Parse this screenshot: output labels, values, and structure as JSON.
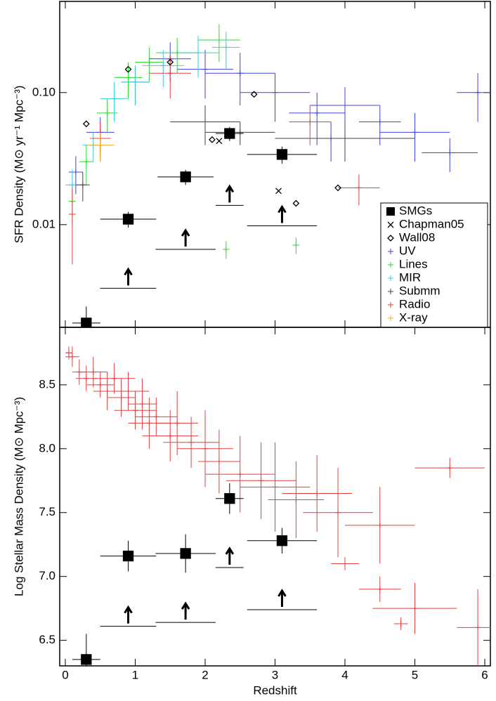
{
  "chart_data": [
    {
      "type": "scatter",
      "ylabel": "SFR Density (M⊙ yr⁻¹ Mpc⁻³)",
      "xlim": [
        -0.08,
        6.08
      ],
      "xticks": [
        0,
        1,
        2,
        3,
        4,
        5,
        6
      ],
      "ylim": [
        0.00167,
        0.49
      ],
      "ylog": true,
      "yticks": [
        0.01,
        {
          "value": 0.1,
          "label": "0.10"
        }
      ],
      "legend": "lower right",
      "series": [
        {
          "name": "SMGs",
          "color": "#000000",
          "marker": "square",
          "x": [
            0.3,
            0.9,
            1.72,
            2.35,
            3.1
          ],
          "values": [
            0.0018,
            0.011,
            0.023,
            0.049,
            0.034
          ],
          "xerr": [
            0.2,
            0.4,
            0.4,
            0.2,
            0.5
          ],
          "yerr": [
            0.0006,
            0.0015,
            0.003,
            0.006,
            0.005
          ]
        },
        {
          "color": "#000000",
          "marker": "arrow",
          "x": [
            0.9,
            1.72,
            2.35,
            3.1
          ],
          "values": [
            0.0033,
            0.0065,
            0.014,
            0.0098
          ],
          "xerr": [
            0.4,
            0.43,
            0.2,
            0.5
          ]
        },
        {
          "name": "Chapman05",
          "color": "#000000",
          "marker": "x",
          "x": [
            2.2,
            3.05
          ],
          "values": [
            0.043,
            0.018
          ]
        },
        {
          "name": "Wall08",
          "color": "#000000",
          "marker": "diamond",
          "x": [
            0.3,
            0.9,
            1.5,
            2.1,
            2.7,
            3.3,
            3.9
          ],
          "values": [
            0.058,
            0.15,
            0.17,
            0.044,
            0.097,
            0.0145,
            0.019
          ]
        },
        {
          "name": "UV",
          "color": "#4040e0",
          "marker": "cross",
          "x": [
            0.15,
            0.5,
            1.0,
            1.5,
            2.0,
            2.5,
            3.0,
            3.6,
            4.0,
            4.5,
            5.0,
            5.5,
            5.9,
            3.8
          ],
          "values": [
            0.025,
            0.05,
            0.12,
            0.18,
            0.15,
            0.14,
            0.1,
            0.07,
            0.08,
            0.06,
            0.05,
            0.035,
            0.1,
            0.045
          ],
          "xerr": [
            0.1,
            0.2,
            0.2,
            0.3,
            0.4,
            0.5,
            0.5,
            0.4,
            0.5,
            0.3,
            0.5,
            0.4,
            0.3,
            0.6
          ],
          "yerr": [
            0.008,
            0.015,
            0.04,
            0.06,
            0.06,
            0.06,
            0.04,
            0.03,
            0.03,
            0.02,
            0.02,
            0.01,
            0.04,
            0.015
          ]
        },
        {
          "name": "Lines",
          "color": "#30d830",
          "marker": "cross",
          "x": [
            0.1,
            0.3,
            0.6,
            0.9,
            1.2,
            1.6,
            2.2,
            2.3,
            3.3
          ],
          "values": [
            0.015,
            0.03,
            0.07,
            0.13,
            0.17,
            0.2,
            0.25,
            0.0065,
            0.007
          ],
          "xerr": [
            0.05,
            0.1,
            0.15,
            0.2,
            0.2,
            0.3,
            0.3,
            0.05,
            0.05
          ],
          "yerr": [
            0.005,
            0.01,
            0.02,
            0.04,
            0.05,
            0.06,
            0.08,
            0.001,
            0.001
          ]
        },
        {
          "name": "MIR",
          "color": "#30d0e0",
          "marker": "cross",
          "x": [
            0.1,
            0.4,
            0.7,
            1.0,
            1.4,
            1.9,
            2.3
          ],
          "values": [
            0.02,
            0.04,
            0.09,
            0.12,
            0.16,
            0.2,
            0.22
          ],
          "xerr": [
            0.1,
            0.15,
            0.2,
            0.2,
            0.3,
            0.3,
            0.2
          ],
          "yerr": [
            0.006,
            0.01,
            0.03,
            0.04,
            0.05,
            0.07,
            0.07
          ]
        },
        {
          "name": "Submm",
          "color": "#404040",
          "marker": "cross",
          "x": [
            0.25,
            2.0,
            2.5,
            4.0
          ],
          "values": [
            0.02,
            0.06,
            0.05,
            0.045
          ],
          "xerr": [
            0.1,
            0.5,
            0.5,
            1.0
          ],
          "yerr": [
            0.005,
            0.02,
            0.01,
            0.015
          ]
        },
        {
          "name": "Radio",
          "color": "#e04040",
          "marker": "cross",
          "x": [
            0.1,
            0.5,
            1.5,
            3.5,
            4.2
          ],
          "values": [
            0.012,
            0.045,
            0.14,
            0.06,
            0.019
          ],
          "xerr": [
            0.05,
            0.15,
            0.3,
            0.3,
            0.3
          ],
          "yerr": [
            0.007,
            0.015,
            0.05,
            0.02,
            0.005
          ]
        },
        {
          "name": "X-ray",
          "color": "#f0b030",
          "marker": "cross",
          "x": [
            0.5
          ],
          "values": [
            0.04
          ],
          "xerr": [
            0.2
          ],
          "yerr": [
            0.01
          ]
        }
      ]
    },
    {
      "type": "scatter",
      "xlabel": "Redshift",
      "ylabel": "Log Stellar Mass Density (M⊙ Mpc⁻³)",
      "xlim": [
        -0.08,
        6.08
      ],
      "xticks": [
        0,
        1,
        2,
        3,
        4,
        5,
        6
      ],
      "ylim": [
        6.3,
        8.95
      ],
      "yticks": [
        6.5,
        {
          "value": 7,
          "label": "7.0"
        },
        7.5,
        {
          "value": 8,
          "label": "8.0"
        },
        8.5
      ],
      "series": [
        {
          "color": "#e04040",
          "marker": "cross",
          "x": [
            0.05,
            0.1,
            0.2,
            0.3,
            0.4,
            0.5,
            0.6,
            0.7,
            0.8,
            0.9,
            1.0,
            1.1,
            1.2,
            1.3,
            1.5,
            1.6,
            1.8,
            2.0,
            2.2,
            2.5,
            2.8,
            3.0,
            3.3,
            3.6,
            3.9,
            4.5,
            4.0,
            4.5,
            4.8,
            5.5,
            5.0,
            5.9
          ],
          "values": [
            8.75,
            8.72,
            8.6,
            8.55,
            8.6,
            8.5,
            8.45,
            8.55,
            8.4,
            8.45,
            8.3,
            8.35,
            8.2,
            8.25,
            8.1,
            8.2,
            8.05,
            8.0,
            7.9,
            7.8,
            7.75,
            7.7,
            7.6,
            7.65,
            7.5,
            7.4,
            7.1,
            6.9,
            6.63,
            7.85,
            6.75,
            6.6
          ],
          "xerr": [
            0.05,
            0.1,
            0.1,
            0.15,
            0.2,
            0.2,
            0.2,
            0.3,
            0.2,
            0.3,
            0.3,
            0.2,
            0.3,
            0.3,
            0.4,
            0.3,
            0.4,
            0.4,
            0.3,
            0.5,
            0.5,
            0.5,
            0.4,
            0.5,
            0.5,
            0.5,
            0.2,
            0.3,
            0.1,
            0.5,
            0.6,
            0.3
          ],
          "yerr": [
            0.05,
            0.08,
            0.1,
            0.1,
            0.12,
            0.1,
            0.15,
            0.12,
            0.15,
            0.15,
            0.15,
            0.2,
            0.2,
            0.15,
            0.2,
            0.25,
            0.2,
            0.3,
            0.25,
            0.3,
            0.3,
            0.35,
            0.3,
            0.3,
            0.35,
            0.3,
            0.05,
            0.1,
            0.05,
            0.08,
            0.2,
            0.3
          ]
        },
        {
          "color": "#000000",
          "marker": "square",
          "x": [
            0.3,
            0.9,
            1.72,
            2.35,
            3.1
          ],
          "values": [
            6.35,
            7.16,
            7.18,
            7.61,
            7.28
          ],
          "xerr": [
            0.2,
            0.4,
            0.43,
            0.2,
            0.5
          ],
          "yerr": [
            0.2,
            0.12,
            0.15,
            0.12,
            0.1
          ]
        },
        {
          "color": "#000000",
          "marker": "arrow",
          "x": [
            0.9,
            1.72,
            2.35,
            3.1
          ],
          "values": [
            6.61,
            6.64,
            7.07,
            6.74
          ],
          "xerr": [
            0.4,
            0.43,
            0.2,
            0.5
          ]
        }
      ]
    }
  ]
}
